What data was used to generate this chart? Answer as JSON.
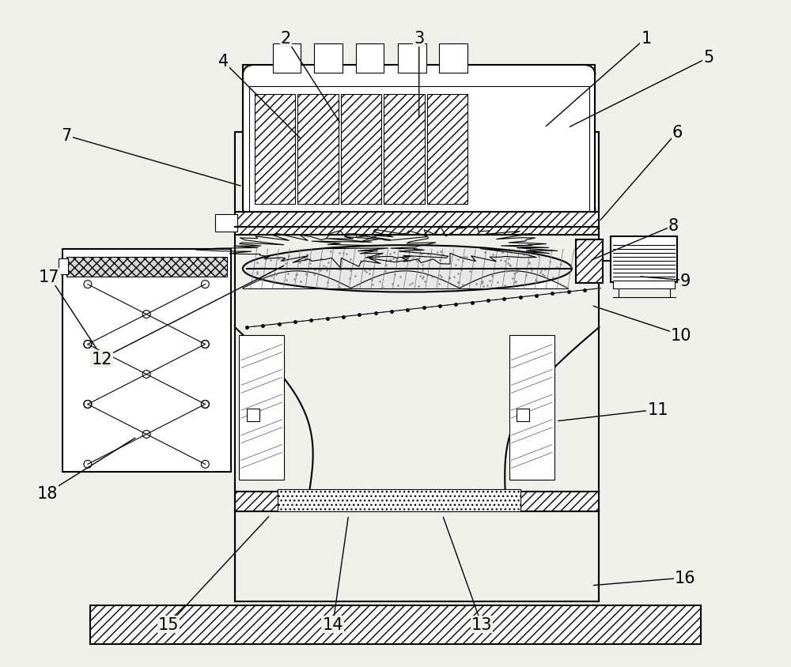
{
  "bg_color": "#f0f0eb",
  "lw_main": 1.5,
  "lw_thin": 0.8,
  "lw_med": 1.2
}
